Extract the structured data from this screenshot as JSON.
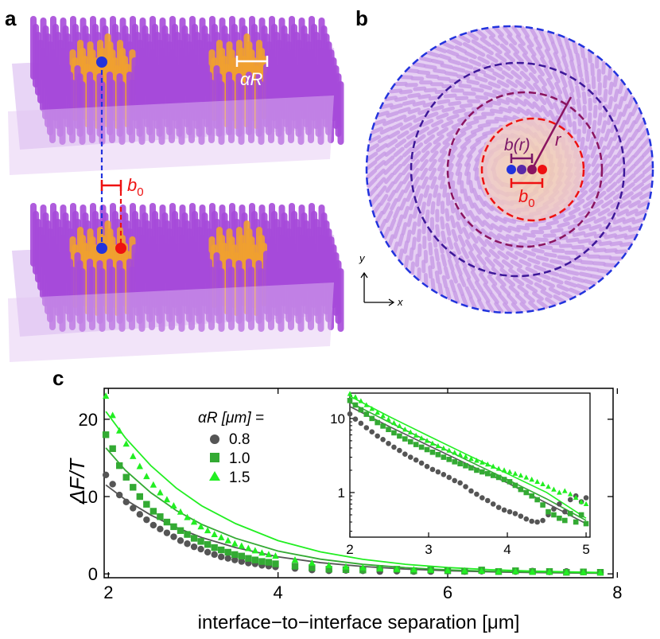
{
  "panels": {
    "a": "a",
    "b": "b",
    "c": "c"
  },
  "panel_a": {
    "alpha_label": "αR",
    "b0_label": "b",
    "b0_sub": "0"
  },
  "panel_b": {
    "b_r_label": "b(r)",
    "r_label": "r",
    "b0_label": "b",
    "b0_sub": "0",
    "axis_y": "y",
    "axis_x": "x"
  },
  "colors": {
    "rod_purple": "#a64ad9",
    "rod_light": "#d6b3ef",
    "core_orange": "#f0a030",
    "blue": "#2233dd",
    "red": "#ee1111",
    "indigo": "#3d1899",
    "dark_magenta": "#8a1460",
    "maroon": "#6a1f6a",
    "series_08": "#555555",
    "series_10": "#33aa33",
    "series_15": "#22ee22"
  },
  "chart_data": [
    {
      "type": "scatter",
      "panel": "c",
      "xlabel": "interface−to−interface separation [μm]",
      "ylabel": "ΔF/T",
      "xlim": [
        1.95,
        7.95
      ],
      "ylim": [
        -0.5,
        24
      ],
      "xticks": [
        2,
        4,
        6,
        8
      ],
      "yticks": [
        0,
        10,
        20
      ],
      "legend": {
        "title": "αR [μm] =",
        "position": "upper-middle"
      },
      "series": [
        {
          "name": "0.8",
          "marker": "circle",
          "color": "#555555",
          "x": [
            1.97,
            2.05,
            2.13,
            2.21,
            2.29,
            2.37,
            2.45,
            2.53,
            2.61,
            2.69,
            2.77,
            2.85,
            2.93,
            3.01,
            3.09,
            3.17,
            3.25,
            3.33,
            3.41,
            3.49,
            3.57,
            3.65,
            3.73,
            3.81,
            3.89,
            3.97,
            4.2,
            4.4,
            4.6,
            4.8,
            5.0,
            5.2,
            5.4,
            5.6,
            5.8,
            6.0,
            6.2,
            6.4,
            6.6,
            6.8,
            7.0,
            7.2,
            7.4,
            7.6,
            7.8
          ],
          "y": [
            12.8,
            11.6,
            10.2,
            9.3,
            8.5,
            7.7,
            7.0,
            6.3,
            5.8,
            5.3,
            4.8,
            4.3,
            3.9,
            3.5,
            3.2,
            2.8,
            2.5,
            2.2,
            2.0,
            1.8,
            1.6,
            1.4,
            1.3,
            1.1,
            1.0,
            0.9,
            0.7,
            0.5,
            0.4,
            0.45,
            0.4,
            0.3,
            0.35,
            0.3,
            0.3,
            0.35,
            0.3,
            0.35,
            0.3,
            0.3,
            0.35,
            0.25,
            0.3,
            0.25,
            0.2
          ],
          "fit": {
            "x": [
              1.97,
              2.2,
              2.5,
              2.8,
              3.1,
              3.5,
              4.0,
              4.5,
              5.0,
              5.5,
              6.0,
              6.5,
              7.0,
              7.5,
              7.8
            ],
            "y": [
              11.5,
              9.6,
              7.6,
              6.0,
              4.7,
              3.4,
              2.2,
              1.45,
              0.95,
              0.62,
              0.4,
              0.26,
              0.17,
              0.11,
              0.08
            ]
          }
        },
        {
          "name": "1.0",
          "marker": "square",
          "color": "#33aa33",
          "x": [
            1.97,
            2.05,
            2.13,
            2.21,
            2.29,
            2.37,
            2.45,
            2.53,
            2.61,
            2.69,
            2.77,
            2.85,
            2.93,
            3.01,
            3.09,
            3.17,
            3.25,
            3.33,
            3.41,
            3.49,
            3.57,
            3.65,
            3.73,
            3.81,
            3.89,
            3.97,
            4.2,
            4.4,
            4.6,
            4.8,
            5.0,
            5.2,
            5.4,
            5.6,
            5.8,
            6.0,
            6.2,
            6.4,
            6.6,
            6.8,
            7.0,
            7.2,
            7.4,
            7.6,
            7.8
          ],
          "y": [
            18.0,
            16.2,
            14.0,
            12.5,
            11.2,
            10.0,
            9.0,
            8.1,
            7.4,
            6.7,
            6.1,
            5.6,
            5.1,
            4.6,
            4.2,
            3.8,
            3.4,
            3.1,
            2.8,
            2.5,
            2.3,
            2.0,
            1.8,
            1.6,
            1.5,
            1.3,
            1.0,
            0.8,
            0.6,
            0.55,
            0.5,
            0.7,
            0.6,
            0.4,
            0.5,
            0.4,
            0.35,
            0.5,
            0.3,
            0.4,
            0.3,
            0.3,
            0.2,
            0.25,
            0.2
          ],
          "fit": {
            "x": [
              1.97,
              2.2,
              2.5,
              2.8,
              3.1,
              3.5,
              4.0,
              4.5,
              5.0,
              5.5,
              6.0,
              6.5,
              7.0,
              7.5,
              7.8
            ],
            "y": [
              16.3,
              13.4,
              10.5,
              8.2,
              6.4,
              4.6,
              2.95,
              1.9,
              1.23,
              0.8,
              0.52,
              0.34,
              0.22,
              0.14,
              0.1
            ]
          }
        },
        {
          "name": "1.5",
          "marker": "triangle",
          "color": "#22ee22",
          "x": [
            1.97,
            2.05,
            2.13,
            2.21,
            2.29,
            2.37,
            2.45,
            2.53,
            2.61,
            2.69,
            2.77,
            2.85,
            2.93,
            3.01,
            3.09,
            3.17,
            3.25,
            3.33,
            3.41,
            3.49,
            3.57,
            3.65,
            3.73,
            3.81,
            3.89,
            3.97,
            4.2,
            4.4,
            4.6,
            4.8,
            5.0,
            5.2,
            5.4,
            5.6,
            5.8,
            6.0,
            6.2,
            6.4,
            6.6,
            6.8,
            7.0,
            7.2,
            7.4,
            7.6,
            7.8
          ],
          "y": [
            23.0,
            20.5,
            18.5,
            16.8,
            15.2,
            13.9,
            12.6,
            11.5,
            10.5,
            9.6,
            8.8,
            8.0,
            7.3,
            6.7,
            6.1,
            5.6,
            5.1,
            4.7,
            4.3,
            3.9,
            3.6,
            3.3,
            3.0,
            2.7,
            2.5,
            2.3,
            1.8,
            1.4,
            1.1,
            0.9,
            0.8,
            0.7,
            0.6,
            0.55,
            0.5,
            0.45,
            0.4,
            0.35,
            0.3,
            0.3,
            0.25,
            0.25,
            0.2,
            0.2,
            0.15
          ],
          "fit": {
            "x": [
              1.97,
              2.2,
              2.5,
              2.8,
              3.1,
              3.5,
              4.0,
              4.5,
              5.0,
              5.5,
              6.0,
              6.5,
              7.0,
              7.5,
              7.8
            ],
            "y": [
              21.0,
              17.6,
              14.0,
              11.1,
              8.8,
              6.5,
              4.3,
              2.85,
              1.88,
              1.24,
              0.82,
              0.54,
              0.36,
              0.24,
              0.18
            ]
          }
        }
      ]
    },
    {
      "type": "scatter",
      "panel": "c-inset",
      "yscale": "log",
      "xlim": [
        2,
        5.05
      ],
      "ylim": [
        0.25,
        22
      ],
      "xticks": [
        2,
        3,
        4,
        5
      ],
      "yticks": [
        1,
        10
      ],
      "series": [
        {
          "name": "0.8",
          "marker": "circle",
          "color": "#555555",
          "x": [
            2.0,
            2.07,
            2.14,
            2.21,
            2.28,
            2.35,
            2.42,
            2.49,
            2.56,
            2.63,
            2.7,
            2.77,
            2.84,
            2.91,
            2.98,
            3.05,
            3.12,
            3.19,
            3.26,
            3.33,
            3.4,
            3.47,
            3.54,
            3.61,
            3.68,
            3.75,
            3.82,
            3.89,
            3.96,
            4.03,
            4.1,
            4.17,
            4.24,
            4.31,
            4.38,
            4.45,
            4.52,
            4.59,
            4.66,
            4.73,
            4.8,
            4.87,
            4.94,
            5.0
          ],
          "y": [
            11.5,
            9.8,
            8.6,
            7.5,
            6.6,
            5.8,
            5.2,
            4.6,
            4.1,
            3.7,
            3.3,
            3.0,
            2.75,
            2.5,
            2.25,
            2.05,
            1.9,
            1.75,
            1.6,
            1.45,
            1.35,
            1.2,
            1.05,
            0.95,
            0.85,
            0.78,
            0.7,
            0.63,
            0.58,
            0.55,
            0.52,
            0.48,
            0.44,
            0.41,
            0.4,
            0.42,
            0.5,
            0.6,
            0.7,
            0.55,
            0.8,
            0.9,
            0.75,
            0.85
          ]
        },
        {
          "name": "1.0",
          "marker": "square",
          "color": "#33aa33",
          "x": [
            2.0,
            2.07,
            2.14,
            2.21,
            2.28,
            2.35,
            2.42,
            2.49,
            2.56,
            2.63,
            2.7,
            2.77,
            2.84,
            2.91,
            2.98,
            3.05,
            3.12,
            3.19,
            3.26,
            3.33,
            3.4,
            3.47,
            3.54,
            3.61,
            3.68,
            3.75,
            3.82,
            3.89,
            3.96,
            4.03,
            4.1,
            4.17,
            4.24,
            4.31,
            4.38,
            4.45,
            4.52,
            4.59,
            4.66,
            4.73,
            4.8,
            4.87,
            4.94,
            5.0
          ],
          "y": [
            17.5,
            15.2,
            13.1,
            11.4,
            10.0,
            8.8,
            7.9,
            7.1,
            6.4,
            5.8,
            5.3,
            4.85,
            4.45,
            4.1,
            3.8,
            3.5,
            3.25,
            3.0,
            2.8,
            2.6,
            2.45,
            2.3,
            2.15,
            2.0,
            1.9,
            1.8,
            1.7,
            1.6,
            1.5,
            1.4,
            1.25,
            1.1,
            1.0,
            0.9,
            0.8,
            0.68,
            0.55,
            0.5,
            0.45,
            0.42,
            0.52,
            0.4,
            0.5,
            0.38
          ]
        },
        {
          "name": "1.5",
          "marker": "triangle",
          "color": "#22ee22",
          "x": [
            2.0,
            2.07,
            2.14,
            2.21,
            2.28,
            2.35,
            2.42,
            2.49,
            2.56,
            2.63,
            2.7,
            2.77,
            2.84,
            2.91,
            2.98,
            3.05,
            3.12,
            3.19,
            3.26,
            3.33,
            3.4,
            3.47,
            3.54,
            3.61,
            3.68,
            3.75,
            3.82,
            3.89,
            3.96,
            4.03,
            4.1,
            4.17,
            4.24,
            4.31,
            4.38,
            4.45,
            4.52,
            4.59,
            4.66,
            4.73,
            4.8,
            4.87,
            4.94,
            5.0
          ],
          "y": [
            21.5,
            19.5,
            17.2,
            15.2,
            13.5,
            12.0,
            10.8,
            9.7,
            8.7,
            7.9,
            7.1,
            6.5,
            5.9,
            5.4,
            5.0,
            4.6,
            4.25,
            3.95,
            3.7,
            3.45,
            3.25,
            3.05,
            2.85,
            2.7,
            2.55,
            2.4,
            2.25,
            2.1,
            2.0,
            1.9,
            1.8,
            1.7,
            1.6,
            1.5,
            1.4,
            1.3,
            1.2,
            1.1,
            1.0,
            1.05,
            0.95,
            0.85,
            0.75,
            0.7
          ]
        }
      ],
      "fits": [
        {
          "name": "0.8",
          "x": [
            2.0,
            2.5,
            3.0,
            3.5,
            4.0,
            4.5,
            5.0
          ],
          "y": [
            14.5,
            7.8,
            4.3,
            2.4,
            1.35,
            0.72,
            0.38
          ]
        },
        {
          "name": "1.0",
          "x": [
            2.0,
            2.5,
            3.0,
            3.5,
            4.0,
            4.5,
            5.0
          ],
          "y": [
            16.5,
            8.9,
            4.9,
            2.7,
            1.5,
            0.82,
            0.42
          ]
        },
        {
          "name": "1.5",
          "x": [
            2.0,
            2.5,
            3.0,
            3.5,
            4.0,
            4.5,
            5.0
          ],
          "y": [
            20.0,
            10.6,
            5.8,
            3.2,
            1.8,
            1.0,
            0.45
          ]
        }
      ]
    }
  ]
}
